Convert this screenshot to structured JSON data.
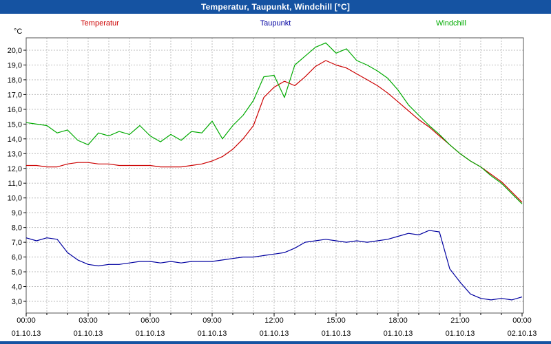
{
  "window": {
    "title": "Temperatur, Taupunkt, Windchill [°C]"
  },
  "chart_data": {
    "type": "line",
    "title": "Temperatur, Taupunkt, Windchill [°C]",
    "xlabel": "",
    "ylabel": "°C",
    "ylim": [
      3.0,
      20.0
    ],
    "ytick_step": 1.0,
    "ytick_format": "comma-decimal",
    "x_hours_span": 24,
    "grid": "dashed",
    "grid_color": "#bdbdbd",
    "legend_position": "top",
    "xticks": [
      {
        "h": 0,
        "time": "00:00",
        "date": "01.10.13"
      },
      {
        "h": 3,
        "time": "03:00",
        "date": "01.10.13"
      },
      {
        "h": 6,
        "time": "06:00",
        "date": "01.10.13"
      },
      {
        "h": 9,
        "time": "09:00",
        "date": "01.10.13"
      },
      {
        "h": 12,
        "time": "12:00",
        "date": "01.10.13"
      },
      {
        "h": 15,
        "time": "15:00",
        "date": "01.10.13"
      },
      {
        "h": 18,
        "time": "18:00",
        "date": "01.10.13"
      },
      {
        "h": 21,
        "time": "21:00",
        "date": "01.10.13"
      },
      {
        "h": 24,
        "time": "00:00",
        "date": "02.10.13"
      }
    ],
    "x_hours": [
      0,
      0.5,
      1,
      1.5,
      2,
      2.5,
      3,
      3.5,
      4,
      4.5,
      5,
      5.5,
      6,
      6.5,
      7,
      7.5,
      8,
      8.5,
      9,
      9.5,
      10,
      10.5,
      11,
      11.5,
      12,
      12.5,
      13,
      13.5,
      14,
      14.5,
      15,
      15.5,
      16,
      16.5,
      17,
      17.5,
      18,
      18.5,
      19,
      19.5,
      20,
      20.5,
      21,
      21.5,
      22,
      22.5,
      23,
      23.5,
      24
    ],
    "series": [
      {
        "name": "Temperatur",
        "color": "#cc0000",
        "values": [
          12.2,
          12.2,
          12.1,
          12.1,
          12.3,
          12.4,
          12.4,
          12.3,
          12.3,
          12.2,
          12.2,
          12.2,
          12.2,
          12.1,
          12.1,
          12.1,
          12.2,
          12.3,
          12.5,
          12.8,
          13.3,
          14.0,
          14.9,
          16.8,
          17.5,
          17.9,
          17.6,
          18.2,
          18.9,
          19.3,
          19.0,
          18.8,
          18.4,
          18.0,
          17.6,
          17.1,
          16.5,
          15.9,
          15.3,
          14.8,
          14.2,
          13.6,
          13.0,
          12.5,
          12.1,
          11.6,
          11.1,
          10.4,
          9.7
        ]
      },
      {
        "name": "Taupunkt",
        "color": "#0000a0",
        "values": [
          7.3,
          7.1,
          7.3,
          7.2,
          6.3,
          5.8,
          5.5,
          5.4,
          5.5,
          5.5,
          5.6,
          5.7,
          5.7,
          5.6,
          5.7,
          5.6,
          5.7,
          5.7,
          5.7,
          5.8,
          5.9,
          6.0,
          6.0,
          6.1,
          6.2,
          6.3,
          6.6,
          7.0,
          7.1,
          7.2,
          7.1,
          7.0,
          7.1,
          7.0,
          7.1,
          7.2,
          7.4,
          7.6,
          7.5,
          7.8,
          7.7,
          5.2,
          4.3,
          3.5,
          3.2,
          3.1,
          3.2,
          3.1,
          3.3
        ]
      },
      {
        "name": "Windchill",
        "color": "#00aa00",
        "values": [
          15.1,
          15.0,
          14.9,
          14.4,
          14.6,
          13.9,
          13.6,
          14.4,
          14.2,
          14.5,
          14.3,
          14.9,
          14.2,
          13.8,
          14.3,
          13.9,
          14.5,
          14.4,
          15.2,
          14.0,
          14.9,
          15.6,
          16.6,
          18.2,
          18.3,
          16.8,
          19.0,
          19.6,
          20.2,
          20.5,
          19.8,
          20.1,
          19.3,
          19.0,
          18.6,
          18.1,
          17.3,
          16.3,
          15.6,
          14.9,
          14.3,
          13.6,
          13.0,
          12.5,
          12.1,
          11.5,
          11.0,
          10.3,
          9.6
        ]
      }
    ]
  }
}
